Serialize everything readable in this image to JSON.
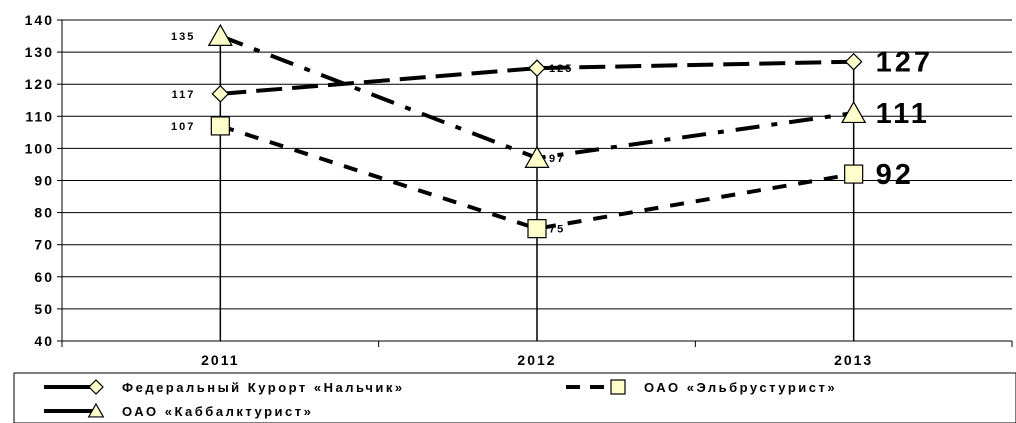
{
  "chart_data": {
    "type": "line",
    "title": "",
    "xlabel": "",
    "ylabel": "",
    "categories": [
      "2011",
      "2012",
      "2013"
    ],
    "ylim": [
      40,
      140
    ],
    "yticks": [
      40,
      50,
      60,
      70,
      80,
      90,
      100,
      110,
      120,
      130,
      140
    ],
    "grid": true,
    "legend_position": "bottom",
    "series": [
      {
        "name": "Федеральный Курорт «Нальчик»",
        "values": [
          117,
          125,
          127
        ],
        "data_labels": [
          "117",
          "125",
          "127"
        ],
        "marker": "diamond",
        "line_style": "long-dash",
        "color": "#000000",
        "marker_fill": "#ffffcc"
      },
      {
        "name": "ОАО «Эльбрустурист»",
        "values": [
          107,
          75,
          92
        ],
        "data_labels": [
          "107",
          "75",
          "92"
        ],
        "marker": "square",
        "line_style": "dash",
        "color": "#000000",
        "marker_fill": "#ffffcc"
      },
      {
        "name": "ОАО «Каббалктурист»",
        "values": [
          135,
          97,
          111
        ],
        "data_labels": [
          "135",
          "97",
          "111"
        ],
        "marker": "triangle",
        "line_style": "dash-dot",
        "color": "#000000",
        "marker_fill": "#ffffcc"
      }
    ]
  }
}
